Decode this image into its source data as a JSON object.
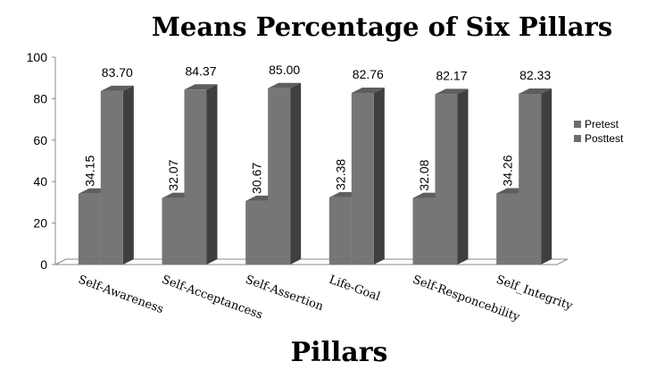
{
  "chart_data": {
    "type": "bar",
    "title": "Means Percentage of Six Pillars",
    "xlabel": "Pillars",
    "ylabel": "",
    "ylim": [
      0,
      100
    ],
    "yticks": [
      0,
      20,
      40,
      60,
      80,
      100
    ],
    "categories": [
      "Self-Awareness",
      "Self-Acceptancess",
      "Self-Assertion",
      "Life-Goal",
      "Self-Responcebility",
      "Self_Integrity"
    ],
    "series": [
      {
        "name": "Pretest",
        "values": [
          34.15,
          32.07,
          30.67,
          32.38,
          32.08,
          34.26
        ],
        "labels": [
          "34.15",
          "32.07",
          "30.67",
          "32.38",
          "32.08",
          "34.26"
        ]
      },
      {
        "name": "Posttest",
        "values": [
          83.7,
          84.37,
          85.0,
          82.76,
          82.17,
          82.33
        ],
        "labels": [
          "83.70",
          "84.37",
          "85.00",
          "82.76",
          "82.17",
          "82.33"
        ]
      }
    ],
    "legend_position": "right",
    "style": "3d-clustered-column",
    "colors": {
      "bar_front": "#767676",
      "bar_top": "#5e5e5e",
      "bar_side": "#3f3f3f",
      "axis": "#888888"
    }
  }
}
